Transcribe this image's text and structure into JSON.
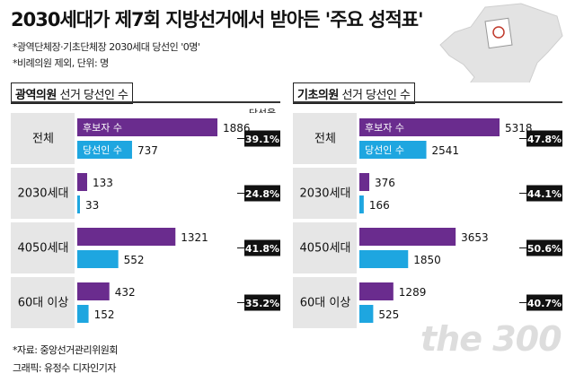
{
  "title": "2030세대가 제7회 지방선거에서 받아든 '주요 성적표'",
  "notes": [
    "*광역단체장·기초단체장 2030세대 당선인 '0명'",
    "*비례의원 제외, 단위: 명"
  ],
  "source": "*자료: 중앙선거관리위원회",
  "credit": "그래픽: 유정수 디자인기자",
  "watermark": "the 300",
  "colors": {
    "candidates": "#6a2c8e",
    "elected": "#1ea6e0",
    "rate_box": "#111111",
    "row_bg": "#e6e6e6"
  },
  "chart_data": [
    {
      "type": "bar",
      "title_bold": "광역의원",
      "title_rest": "선거 당선인 수",
      "categories": [
        "전체",
        "2030세대",
        "4050세대",
        "60대 이상"
      ],
      "series": [
        {
          "name": "후보자 수",
          "values": [
            1886,
            133,
            1321,
            432
          ]
        },
        {
          "name": "당선인 수",
          "values": [
            737,
            33,
            552,
            152
          ]
        }
      ],
      "rate_label": "당선율",
      "rates": [
        "39.1%",
        "24.8%",
        "41.8%",
        "35.2%"
      ]
    },
    {
      "type": "bar",
      "title_bold": "기초의원",
      "title_rest": "선거 당선인 수",
      "categories": [
        "전체",
        "2030세대",
        "4050세대",
        "60대 이상"
      ],
      "series": [
        {
          "name": "후보자 수",
          "values": [
            5318,
            376,
            3653,
            1289
          ]
        },
        {
          "name": "당선인 수",
          "values": [
            2541,
            166,
            1850,
            525
          ]
        }
      ],
      "rates": [
        "47.8%",
        "44.1%",
        "50.6%",
        "40.7%"
      ]
    }
  ]
}
